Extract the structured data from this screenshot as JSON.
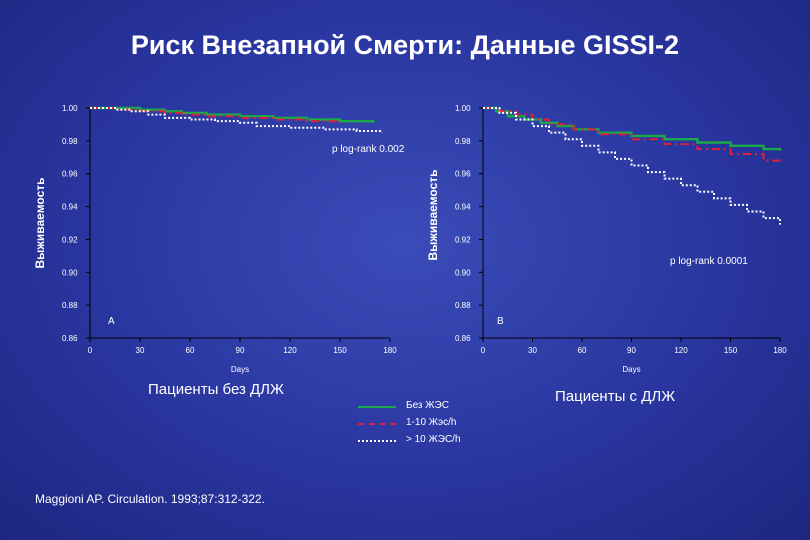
{
  "title": "Риск Внезапной Смерти: Данные GISSI-2",
  "left_caption": "Пациенты без ДЛЖ",
  "right_caption": "Пациенты с ДЛЖ",
  "citation": "Maggioni AP.  Circulation.  1993;87:312-322.",
  "legend": [
    {
      "label": "Без ЖЭС",
      "color": "#1aa84a",
      "style": "solid"
    },
    {
      "label": "1-10 Жэс/h",
      "color": "#e0203a",
      "style": "dashdot"
    },
    {
      "label": "> 10 ЖЭС/h",
      "color": "#ffffff",
      "style": "dotted"
    }
  ],
  "chart_data": [
    {
      "type": "line",
      "panel_label": "A",
      "ylabel": "Выживаемость",
      "xlabel": "Days",
      "annotation": "p log-rank 0.002",
      "xticks": [
        0,
        30,
        60,
        90,
        120,
        150,
        180
      ],
      "yticks": [
        "0.86",
        "0.88",
        "0.90",
        "0.92",
        "0.94",
        "0.96",
        "0.98",
        "1.00"
      ],
      "xlim": [
        0,
        180
      ],
      "ylim": [
        0.86,
        1.0
      ],
      "series": [
        {
          "color": "#1aa84a",
          "style": "solid",
          "x": [
            0,
            15,
            30,
            45,
            55,
            70,
            90,
            110,
            130,
            150,
            170
          ],
          "y": [
            1.0,
            1.0,
            0.999,
            0.998,
            0.997,
            0.996,
            0.995,
            0.994,
            0.993,
            0.992,
            0.991
          ]
        },
        {
          "color": "#e0203a",
          "style": "dashdot",
          "x": [
            0,
            15,
            30,
            45,
            55,
            70,
            90,
            110,
            130,
            150
          ],
          "y": [
            1.0,
            0.999,
            0.998,
            0.997,
            0.996,
            0.995,
            0.994,
            0.993,
            0.992,
            0.991
          ]
        },
        {
          "color": "#ffffff",
          "style": "dotted",
          "x": [
            0,
            15,
            25,
            35,
            45,
            60,
            75,
            90,
            100,
            120,
            140,
            160,
            175
          ],
          "y": [
            1.0,
            0.999,
            0.998,
            0.996,
            0.994,
            0.993,
            0.992,
            0.991,
            0.989,
            0.988,
            0.987,
            0.986,
            0.985
          ]
        }
      ]
    },
    {
      "type": "line",
      "panel_label": "B",
      "ylabel": "Выживаемость",
      "xlabel": "Days",
      "annotation": "p log-rank 0.0001",
      "xticks": [
        0,
        30,
        60,
        90,
        120,
        150,
        180
      ],
      "yticks": [
        "0.86",
        "0.88",
        "0.90",
        "0.92",
        "0.94",
        "0.96",
        "0.98",
        "1.00"
      ],
      "xlim": [
        0,
        180
      ],
      "ylim": [
        0.86,
        1.0
      ],
      "series": [
        {
          "color": "#1aa84a",
          "style": "solid",
          "x": [
            0,
            8,
            15,
            25,
            35,
            45,
            55,
            70,
            90,
            110,
            130,
            150,
            170,
            180
          ],
          "y": [
            1.0,
            0.998,
            0.995,
            0.993,
            0.991,
            0.989,
            0.987,
            0.985,
            0.983,
            0.981,
            0.979,
            0.977,
            0.975,
            0.974
          ]
        },
        {
          "color": "#e0203a",
          "style": "dashdot",
          "x": [
            0,
            10,
            20,
            30,
            40,
            55,
            70,
            90,
            110,
            130,
            150,
            170,
            180
          ],
          "y": [
            1.0,
            0.998,
            0.996,
            0.993,
            0.99,
            0.987,
            0.984,
            0.981,
            0.978,
            0.975,
            0.972,
            0.968,
            0.966
          ]
        },
        {
          "color": "#ffffff",
          "style": "dotted",
          "x": [
            0,
            10,
            20,
            30,
            40,
            50,
            60,
            70,
            80,
            90,
            100,
            110,
            120,
            130,
            140,
            150,
            160,
            170,
            180
          ],
          "y": [
            1.0,
            0.997,
            0.993,
            0.989,
            0.985,
            0.981,
            0.977,
            0.973,
            0.969,
            0.965,
            0.961,
            0.957,
            0.953,
            0.949,
            0.945,
            0.941,
            0.937,
            0.933,
            0.929
          ]
        }
      ]
    }
  ]
}
